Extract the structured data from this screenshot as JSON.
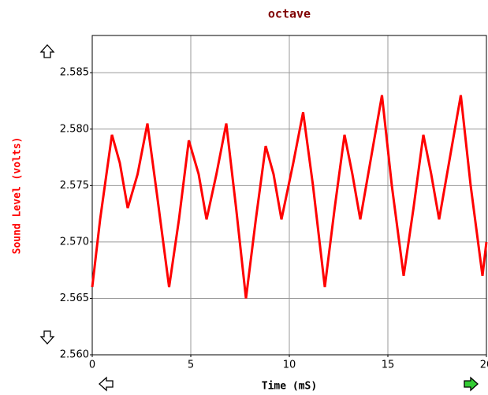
{
  "chart_data": {
    "type": "line",
    "title": "octave",
    "x_label": "Time (mS)",
    "y_label": "Sound Level (volts)",
    "color": "#ff0000",
    "x": [
      0,
      0.4,
      1.0,
      1.4,
      1.8,
      2.3,
      2.8,
      3.3,
      3.9,
      4.4,
      4.9,
      5.4,
      5.8,
      6.3,
      6.8,
      7.3,
      7.8,
      8.3,
      8.8,
      9.2,
      9.6,
      10.2,
      10.7,
      11.2,
      11.8,
      12.3,
      12.8,
      13.2,
      13.6,
      14.2,
      14.7,
      15.2,
      15.8,
      16.3,
      16.8,
      17.2,
      17.6,
      18.2,
      18.7,
      19.2,
      19.8,
      20
    ],
    "values": [
      2.566,
      2.572,
      2.5795,
      2.577,
      2.573,
      2.576,
      2.5805,
      2.574,
      2.566,
      2.572,
      2.579,
      2.576,
      2.572,
      2.576,
      2.5805,
      2.573,
      2.565,
      2.572,
      2.5785,
      2.576,
      2.572,
      2.577,
      2.5815,
      2.575,
      2.566,
      2.573,
      2.5795,
      2.576,
      2.572,
      2.578,
      2.583,
      2.575,
      2.567,
      2.573,
      2.5795,
      2.576,
      2.572,
      2.578,
      2.583,
      2.575,
      2.567,
      2.57
    ],
    "xlim": [
      0,
      20
    ],
    "xticks": [
      0,
      5,
      10,
      15,
      20
    ],
    "ylim": [
      2.56,
      2.5883
    ],
    "yticks": [
      {
        "value": 2.56,
        "label": "2.560"
      },
      2.565,
      {
        "value": 2.57,
        "label": "2.570"
      },
      2.575,
      {
        "value": 2.58,
        "label": "2.580"
      },
      2.585
    ],
    "grid": true
  }
}
